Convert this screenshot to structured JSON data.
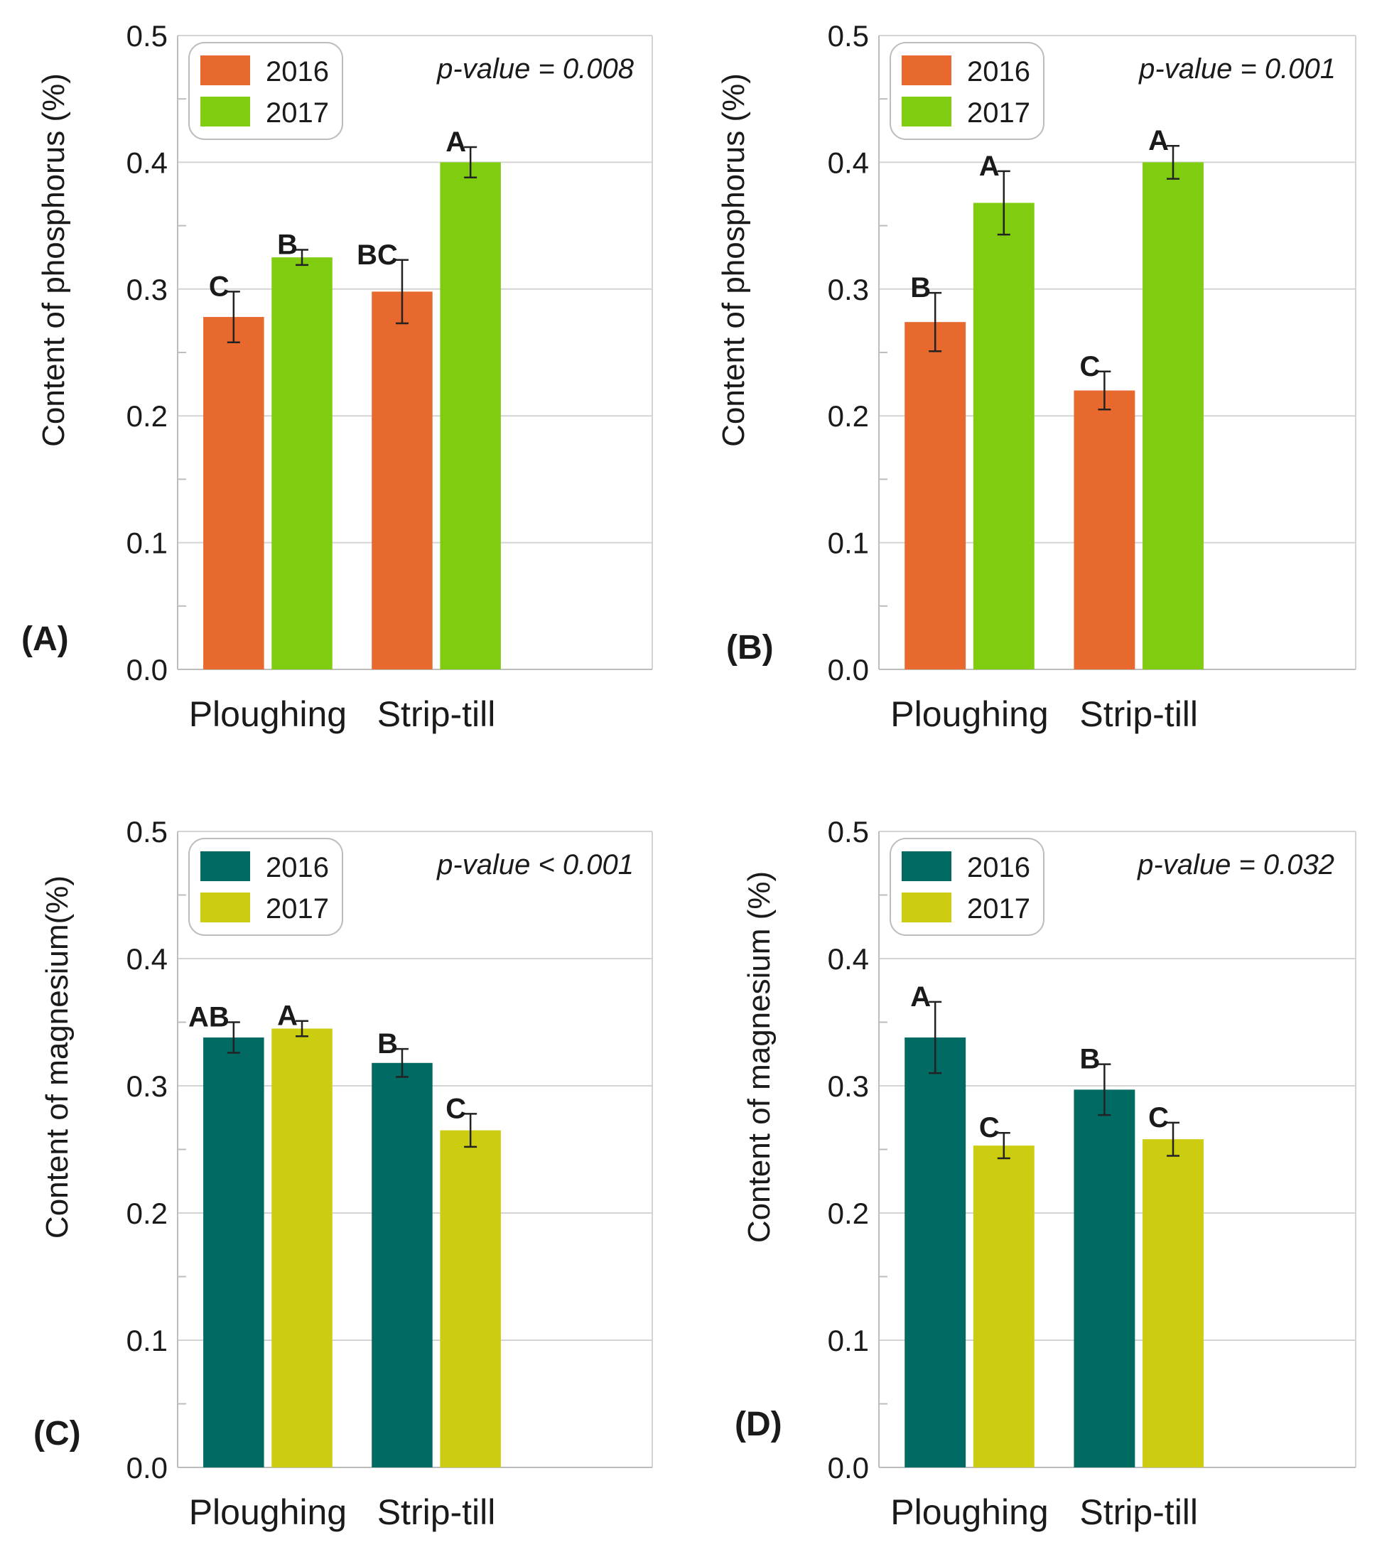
{
  "chart_data": [
    {
      "type": "bar",
      "panel_label": "(A)",
      "ylabel": "Content of phosphorus (%)",
      "xlabel": "",
      "ylim": [
        0,
        0.5
      ],
      "yticks": [
        "0.0",
        "0.1",
        "0.2",
        "0.3",
        "0.4",
        "0.5"
      ],
      "grid": true,
      "legend_position": "top-left",
      "p_value_text": "p-value = 0.008",
      "categories": [
        "Ploughing",
        "Strip-till"
      ],
      "series": [
        {
          "name": "2016",
          "color": "#e8692e",
          "values": [
            0.278,
            0.298
          ],
          "errors": [
            0.02,
            0.025
          ],
          "letters": [
            "C",
            "BC"
          ]
        },
        {
          "name": "2017",
          "color": "#7fcc10",
          "values": [
            0.325,
            0.4
          ],
          "errors": [
            0.006,
            0.012
          ],
          "letters": [
            "B",
            "A"
          ]
        }
      ]
    },
    {
      "type": "bar",
      "panel_label": "(B)",
      "ylabel": "Content of phosphorus (%)",
      "xlabel": "",
      "ylim": [
        0,
        0.5
      ],
      "yticks": [
        "0.0",
        "0.1",
        "0.2",
        "0.3",
        "0.4",
        "0.5"
      ],
      "grid": true,
      "legend_position": "top-left",
      "p_value_text": "p-value = 0.001",
      "categories": [
        "Ploughing",
        "Strip-till"
      ],
      "series": [
        {
          "name": "2016",
          "color": "#e8692e",
          "values": [
            0.274,
            0.22
          ],
          "errors": [
            0.023,
            0.015
          ],
          "letters": [
            "B",
            "C"
          ]
        },
        {
          "name": "2017",
          "color": "#7fcc10",
          "values": [
            0.368,
            0.4
          ],
          "errors": [
            0.025,
            0.013
          ],
          "letters": [
            "A",
            "A"
          ]
        }
      ]
    },
    {
      "type": "bar",
      "panel_label": "(C)",
      "ylabel": "Content of magnesium(%)",
      "xlabel": "",
      "ylim": [
        0,
        0.5
      ],
      "yticks": [
        "0.0",
        "0.1",
        "0.2",
        "0.3",
        "0.4",
        "0.5"
      ],
      "grid": true,
      "legend_position": "top-left",
      "p_value_text": "p-value < 0.001",
      "categories": [
        "Ploughing",
        "Strip-till"
      ],
      "series": [
        {
          "name": "2016",
          "color": "#006a63",
          "values": [
            0.338,
            0.318
          ],
          "errors": [
            0.012,
            0.011
          ],
          "letters": [
            "AB",
            "B"
          ]
        },
        {
          "name": "2017",
          "color": "#cccc10",
          "values": [
            0.345,
            0.265
          ],
          "errors": [
            0.006,
            0.013
          ],
          "letters": [
            "A",
            "C"
          ]
        }
      ]
    },
    {
      "type": "bar",
      "panel_label": "(D)",
      "ylabel": "Content of magnesium (%)",
      "xlabel": "",
      "ylim": [
        0,
        0.5
      ],
      "yticks": [
        "0.0",
        "0.1",
        "0.2",
        "0.3",
        "0.4",
        "0.5"
      ],
      "grid": true,
      "legend_position": "top-left",
      "p_value_text": "p-value = 0.032",
      "categories": [
        "Ploughing",
        "Strip-till"
      ],
      "series": [
        {
          "name": "2016",
          "color": "#006a63",
          "values": [
            0.338,
            0.297
          ],
          "errors": [
            0.028,
            0.02
          ],
          "letters": [
            "A",
            "B"
          ]
        },
        {
          "name": "2017",
          "color": "#cccc10",
          "values": [
            0.253,
            0.258
          ],
          "errors": [
            0.01,
            0.013
          ],
          "letters": [
            "C",
            "C"
          ]
        }
      ]
    }
  ]
}
